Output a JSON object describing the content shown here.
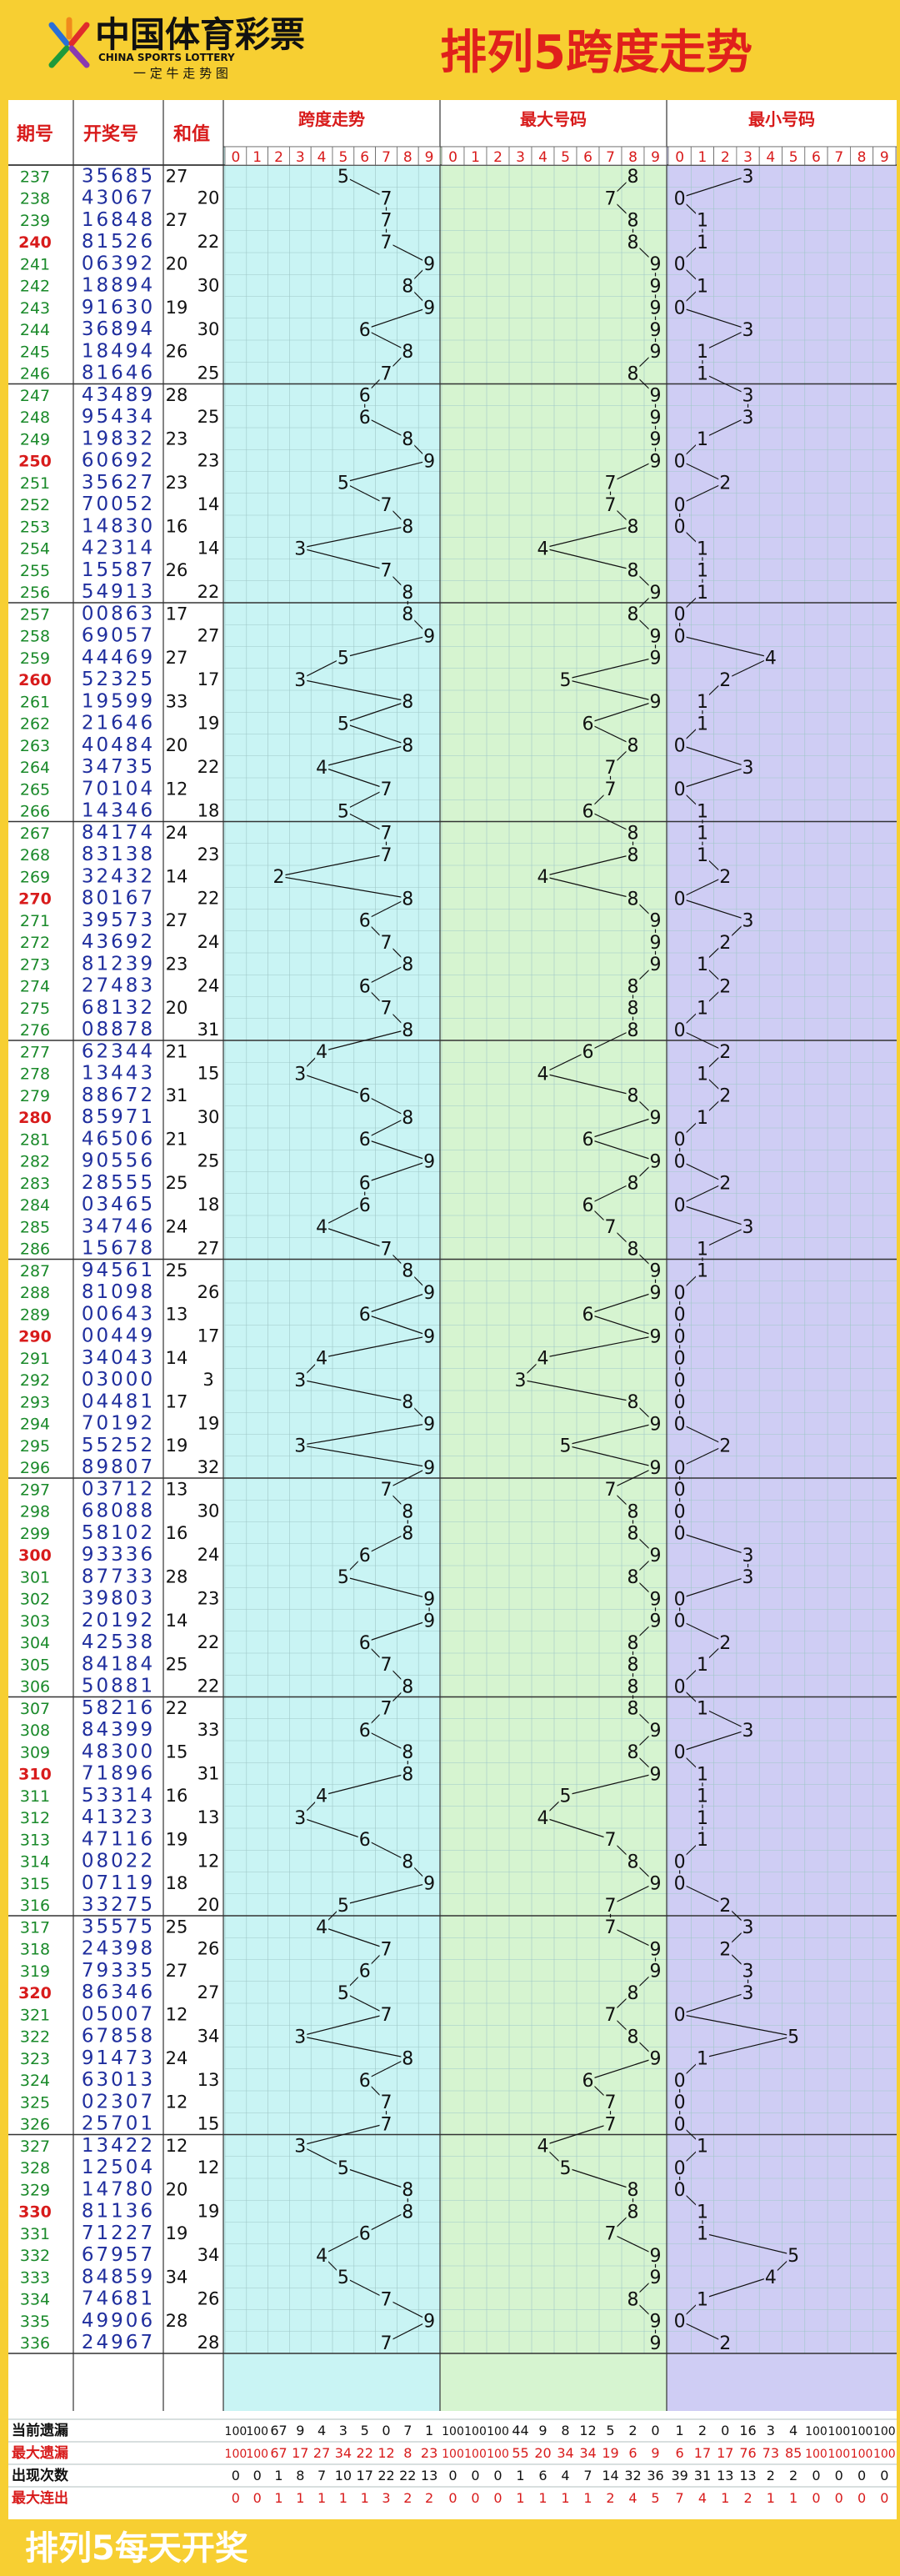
{
  "header": {
    "logo_text": "中国体育彩票",
    "logo_sub_en": "CHINA SPORTS LOTTERY",
    "logo_slogan": "一 定 牛 走 势 图",
    "title": "排列5跨度走势"
  },
  "footer": {
    "text": "排列5每天开奖"
  },
  "columns": {
    "period": "期号",
    "number": "开奖号",
    "sum": "和值",
    "span": "跨度走势",
    "max": "最大号码",
    "min": "最小号码"
  },
  "digit_labels": [
    "0",
    "1",
    "2",
    "3",
    "4",
    "5",
    "6",
    "7",
    "8",
    "9"
  ],
  "colors": {
    "background": "#f7cf32",
    "header_red": "#e0201c",
    "period_green": "#1a8a2a",
    "period_red": "#d81b1b",
    "number_blue": "#1f2e9e",
    "span_zone": "#c9f4f4",
    "max_zone": "#d6f4d0",
    "min_zone": "#cfcdf4",
    "grid_line": "#9fc7c7"
  },
  "chart_data": {
    "type": "table",
    "title": "排列5跨度走势",
    "rows": [
      {
        "p": "237",
        "n": "35685",
        "s": 27,
        "span": 5,
        "max": 8,
        "min": 3
      },
      {
        "p": "238",
        "n": "43067",
        "s": 20,
        "span": 7,
        "max": 7,
        "min": 0
      },
      {
        "p": "239",
        "n": "16848",
        "s": 27,
        "span": 7,
        "max": 8,
        "min": 1
      },
      {
        "p": "240",
        "n": "81526",
        "s": 22,
        "span": 7,
        "max": 8,
        "min": 1
      },
      {
        "p": "241",
        "n": "06392",
        "s": 20,
        "span": 9,
        "max": 9,
        "min": 0
      },
      {
        "p": "242",
        "n": "18894",
        "s": 30,
        "span": 8,
        "max": 9,
        "min": 1
      },
      {
        "p": "243",
        "n": "91630",
        "s": 19,
        "span": 9,
        "max": 9,
        "min": 0
      },
      {
        "p": "244",
        "n": "36894",
        "s": 30,
        "span": 6,
        "max": 9,
        "min": 3
      },
      {
        "p": "245",
        "n": "18494",
        "s": 26,
        "span": 8,
        "max": 9,
        "min": 1
      },
      {
        "p": "246",
        "n": "81646",
        "s": 25,
        "span": 7,
        "max": 8,
        "min": 1
      },
      {
        "p": "247",
        "n": "43489",
        "s": 28,
        "span": 6,
        "max": 9,
        "min": 3
      },
      {
        "p": "248",
        "n": "95434",
        "s": 25,
        "span": 6,
        "max": 9,
        "min": 3
      },
      {
        "p": "249",
        "n": "19832",
        "s": 23,
        "span": 8,
        "max": 9,
        "min": 1
      },
      {
        "p": "250",
        "n": "60692",
        "s": 23,
        "span": 9,
        "max": 9,
        "min": 0
      },
      {
        "p": "251",
        "n": "35627",
        "s": 23,
        "span": 5,
        "max": 7,
        "min": 2
      },
      {
        "p": "252",
        "n": "70052",
        "s": 14,
        "span": 7,
        "max": 7,
        "min": 0
      },
      {
        "p": "253",
        "n": "14830",
        "s": 16,
        "span": 8,
        "max": 8,
        "min": 0
      },
      {
        "p": "254",
        "n": "42314",
        "s": 14,
        "span": 3,
        "max": 4,
        "min": 1
      },
      {
        "p": "255",
        "n": "15587",
        "s": 26,
        "span": 7,
        "max": 8,
        "min": 1
      },
      {
        "p": "256",
        "n": "54913",
        "s": 22,
        "span": 8,
        "max": 9,
        "min": 1
      },
      {
        "p": "257",
        "n": "00863",
        "s": 17,
        "span": 8,
        "max": 8,
        "min": 0
      },
      {
        "p": "258",
        "n": "69057",
        "s": 27,
        "span": 9,
        "max": 9,
        "min": 0
      },
      {
        "p": "259",
        "n": "44469",
        "s": 27,
        "span": 5,
        "max": 9,
        "min": 4
      },
      {
        "p": "260",
        "n": "52325",
        "s": 17,
        "span": 3,
        "max": 5,
        "min": 2
      },
      {
        "p": "261",
        "n": "19599",
        "s": 33,
        "span": 8,
        "max": 9,
        "min": 1
      },
      {
        "p": "262",
        "n": "21646",
        "s": 19,
        "span": 5,
        "max": 6,
        "min": 1
      },
      {
        "p": "263",
        "n": "40484",
        "s": 20,
        "span": 8,
        "max": 8,
        "min": 0
      },
      {
        "p": "264",
        "n": "34735",
        "s": 22,
        "span": 4,
        "max": 7,
        "min": 3
      },
      {
        "p": "265",
        "n": "70104",
        "s": 12,
        "span": 7,
        "max": 7,
        "min": 0
      },
      {
        "p": "266",
        "n": "14346",
        "s": 18,
        "span": 5,
        "max": 6,
        "min": 1
      },
      {
        "p": "267",
        "n": "84174",
        "s": 24,
        "span": 7,
        "max": 8,
        "min": 1
      },
      {
        "p": "268",
        "n": "83138",
        "s": 23,
        "span": 7,
        "max": 8,
        "min": 1
      },
      {
        "p": "269",
        "n": "32432",
        "s": 14,
        "span": 2,
        "max": 4,
        "min": 2
      },
      {
        "p": "270",
        "n": "80167",
        "s": 22,
        "span": 8,
        "max": 8,
        "min": 0
      },
      {
        "p": "271",
        "n": "39573",
        "s": 27,
        "span": 6,
        "max": 9,
        "min": 3
      },
      {
        "p": "272",
        "n": "43692",
        "s": 24,
        "span": 7,
        "max": 9,
        "min": 2
      },
      {
        "p": "273",
        "n": "81239",
        "s": 23,
        "span": 8,
        "max": 9,
        "min": 1
      },
      {
        "p": "274",
        "n": "27483",
        "s": 24,
        "span": 6,
        "max": 8,
        "min": 2
      },
      {
        "p": "275",
        "n": "68132",
        "s": 20,
        "span": 7,
        "max": 8,
        "min": 1
      },
      {
        "p": "276",
        "n": "08878",
        "s": 31,
        "span": 8,
        "max": 8,
        "min": 0
      },
      {
        "p": "277",
        "n": "62344",
        "s": 21,
        "span": 4,
        "max": 6,
        "min": 2
      },
      {
        "p": "278",
        "n": "13443",
        "s": 15,
        "span": 3,
        "max": 4,
        "min": 1
      },
      {
        "p": "279",
        "n": "88672",
        "s": 31,
        "span": 6,
        "max": 8,
        "min": 2
      },
      {
        "p": "280",
        "n": "85971",
        "s": 30,
        "span": 8,
        "max": 9,
        "min": 1
      },
      {
        "p": "281",
        "n": "46506",
        "s": 21,
        "span": 6,
        "max": 6,
        "min": 0
      },
      {
        "p": "282",
        "n": "90556",
        "s": 25,
        "span": 9,
        "max": 9,
        "min": 0
      },
      {
        "p": "283",
        "n": "28555",
        "s": 25,
        "span": 6,
        "max": 8,
        "min": 2
      },
      {
        "p": "284",
        "n": "03465",
        "s": 18,
        "span": 6,
        "max": 6,
        "min": 0
      },
      {
        "p": "285",
        "n": "34746",
        "s": 24,
        "span": 4,
        "max": 7,
        "min": 3
      },
      {
        "p": "286",
        "n": "15678",
        "s": 27,
        "span": 7,
        "max": 8,
        "min": 1
      },
      {
        "p": "287",
        "n": "94561",
        "s": 25,
        "span": 8,
        "max": 9,
        "min": 1
      },
      {
        "p": "288",
        "n": "81098",
        "s": 26,
        "span": 9,
        "max": 9,
        "min": 0
      },
      {
        "p": "289",
        "n": "00643",
        "s": 13,
        "span": 6,
        "max": 6,
        "min": 0
      },
      {
        "p": "290",
        "n": "00449",
        "s": 17,
        "span": 9,
        "max": 9,
        "min": 0
      },
      {
        "p": "291",
        "n": "34043",
        "s": 14,
        "span": 4,
        "max": 4,
        "min": 0
      },
      {
        "p": "292",
        "n": "03000",
        "s": 3,
        "span": 3,
        "max": 3,
        "min": 0
      },
      {
        "p": "293",
        "n": "04481",
        "s": 17,
        "span": 8,
        "max": 8,
        "min": 0
      },
      {
        "p": "294",
        "n": "70192",
        "s": 19,
        "span": 9,
        "max": 9,
        "min": 0
      },
      {
        "p": "295",
        "n": "55252",
        "s": 19,
        "span": 3,
        "max": 5,
        "min": 2
      },
      {
        "p": "296",
        "n": "89807",
        "s": 32,
        "span": 9,
        "max": 9,
        "min": 0
      },
      {
        "p": "297",
        "n": "03712",
        "s": 13,
        "span": 7,
        "max": 7,
        "min": 0
      },
      {
        "p": "298",
        "n": "68088",
        "s": 30,
        "span": 8,
        "max": 8,
        "min": 0
      },
      {
        "p": "299",
        "n": "58102",
        "s": 16,
        "span": 8,
        "max": 8,
        "min": 0
      },
      {
        "p": "300",
        "n": "93336",
        "s": 24,
        "span": 6,
        "max": 9,
        "min": 3
      },
      {
        "p": "301",
        "n": "87733",
        "s": 28,
        "span": 5,
        "max": 8,
        "min": 3
      },
      {
        "p": "302",
        "n": "39803",
        "s": 23,
        "span": 9,
        "max": 9,
        "min": 0
      },
      {
        "p": "303",
        "n": "20192",
        "s": 14,
        "span": 9,
        "max": 9,
        "min": 0
      },
      {
        "p": "304",
        "n": "42538",
        "s": 22,
        "span": 6,
        "max": 8,
        "min": 2
      },
      {
        "p": "305",
        "n": "84184",
        "s": 25,
        "span": 7,
        "max": 8,
        "min": 1
      },
      {
        "p": "306",
        "n": "50881",
        "s": 22,
        "span": 8,
        "max": 8,
        "min": 0
      },
      {
        "p": "307",
        "n": "58216",
        "s": 22,
        "span": 7,
        "max": 8,
        "min": 1
      },
      {
        "p": "308",
        "n": "84399",
        "s": 33,
        "span": 6,
        "max": 9,
        "min": 3
      },
      {
        "p": "309",
        "n": "48300",
        "s": 15,
        "span": 8,
        "max": 8,
        "min": 0
      },
      {
        "p": "310",
        "n": "71896",
        "s": 31,
        "span": 8,
        "max": 9,
        "min": 1
      },
      {
        "p": "311",
        "n": "53314",
        "s": 16,
        "span": 4,
        "max": 5,
        "min": 1
      },
      {
        "p": "312",
        "n": "41323",
        "s": 13,
        "span": 3,
        "max": 4,
        "min": 1
      },
      {
        "p": "313",
        "n": "47116",
        "s": 19,
        "span": 6,
        "max": 7,
        "min": 1
      },
      {
        "p": "314",
        "n": "08022",
        "s": 12,
        "span": 8,
        "max": 8,
        "min": 0
      },
      {
        "p": "315",
        "n": "07119",
        "s": 18,
        "span": 9,
        "max": 9,
        "min": 0
      },
      {
        "p": "316",
        "n": "33275",
        "s": 20,
        "span": 5,
        "max": 7,
        "min": 2
      },
      {
        "p": "317",
        "n": "35575",
        "s": 25,
        "span": 4,
        "max": 7,
        "min": 3
      },
      {
        "p": "318",
        "n": "24398",
        "s": 26,
        "span": 7,
        "max": 9,
        "min": 2
      },
      {
        "p": "319",
        "n": "79335",
        "s": 27,
        "span": 6,
        "max": 9,
        "min": 3
      },
      {
        "p": "320",
        "n": "86346",
        "s": 27,
        "span": 5,
        "max": 8,
        "min": 3
      },
      {
        "p": "321",
        "n": "05007",
        "s": 12,
        "span": 7,
        "max": 7,
        "min": 0
      },
      {
        "p": "322",
        "n": "67858",
        "s": 34,
        "span": 3,
        "max": 8,
        "min": 5
      },
      {
        "p": "323",
        "n": "91473",
        "s": 24,
        "span": 8,
        "max": 9,
        "min": 1
      },
      {
        "p": "324",
        "n": "63013",
        "s": 13,
        "span": 6,
        "max": 6,
        "min": 0
      },
      {
        "p": "325",
        "n": "02307",
        "s": 12,
        "span": 7,
        "max": 7,
        "min": 0
      },
      {
        "p": "326",
        "n": "25701",
        "s": 15,
        "span": 7,
        "max": 7,
        "min": 0
      },
      {
        "p": "327",
        "n": "13422",
        "s": 12,
        "span": 3,
        "max": 4,
        "min": 1
      },
      {
        "p": "328",
        "n": "12504",
        "s": 12,
        "span": 5,
        "max": 5,
        "min": 0
      },
      {
        "p": "329",
        "n": "14780",
        "s": 20,
        "span": 8,
        "max": 8,
        "min": 0
      },
      {
        "p": "330",
        "n": "81136",
        "s": 19,
        "span": 8,
        "max": 8,
        "min": 1
      },
      {
        "p": "331",
        "n": "71227",
        "s": 19,
        "span": 6,
        "max": 7,
        "min": 1
      },
      {
        "p": "332",
        "n": "67957",
        "s": 34,
        "span": 4,
        "max": 9,
        "min": 5
      },
      {
        "p": "333",
        "n": "84859",
        "s": 34,
        "span": 5,
        "max": 9,
        "min": 4
      },
      {
        "p": "334",
        "n": "74681",
        "s": 26,
        "span": 7,
        "max": 8,
        "min": 1
      },
      {
        "p": "335",
        "n": "49906",
        "s": 28,
        "span": 9,
        "max": 9,
        "min": 0
      },
      {
        "p": "336",
        "n": "24967",
        "s": 28,
        "span": 7,
        "max": 9,
        "min": 2
      }
    ],
    "stats": [
      {
        "label": "当前遗漏",
        "color": "#111111",
        "span": [
          "100",
          "100",
          "67",
          "9",
          "4",
          "3",
          "5",
          "0",
          "7",
          "1"
        ],
        "max": [
          "100",
          "100",
          "100",
          "44",
          "9",
          "8",
          "12",
          "5",
          "2",
          "0"
        ],
        "min": [
          "1",
          "2",
          "0",
          "16",
          "3",
          "4",
          "100",
          "100",
          "100",
          "100"
        ]
      },
      {
        "label": "最大遗漏",
        "color": "#d81b1b",
        "span": [
          "100",
          "100",
          "67",
          "17",
          "27",
          "34",
          "22",
          "12",
          "8",
          "23"
        ],
        "max": [
          "100",
          "100",
          "100",
          "55",
          "20",
          "34",
          "34",
          "19",
          "6",
          "9"
        ],
        "min": [
          "6",
          "17",
          "17",
          "76",
          "73",
          "85",
          "100",
          "100",
          "100",
          "100"
        ]
      },
      {
        "label": "出现次数",
        "color": "#111111",
        "span": [
          "0",
          "0",
          "1",
          "8",
          "7",
          "10",
          "17",
          "22",
          "22",
          "13"
        ],
        "max": [
          "0",
          "0",
          "0",
          "1",
          "6",
          "4",
          "7",
          "14",
          "32",
          "36"
        ],
        "min": [
          "39",
          "31",
          "13",
          "13",
          "2",
          "2",
          "0",
          "0",
          "0",
          "0"
        ]
      },
      {
        "label": "最大连出",
        "color": "#d81b1b",
        "span": [
          "0",
          "0",
          "1",
          "1",
          "1",
          "1",
          "1",
          "3",
          "2",
          "2"
        ],
        "max": [
          "0",
          "0",
          "0",
          "1",
          "1",
          "1",
          "1",
          "2",
          "4",
          "5"
        ],
        "min": [
          "7",
          "4",
          "1",
          "2",
          "1",
          "1",
          "0",
          "0",
          "0",
          "0"
        ]
      }
    ]
  }
}
